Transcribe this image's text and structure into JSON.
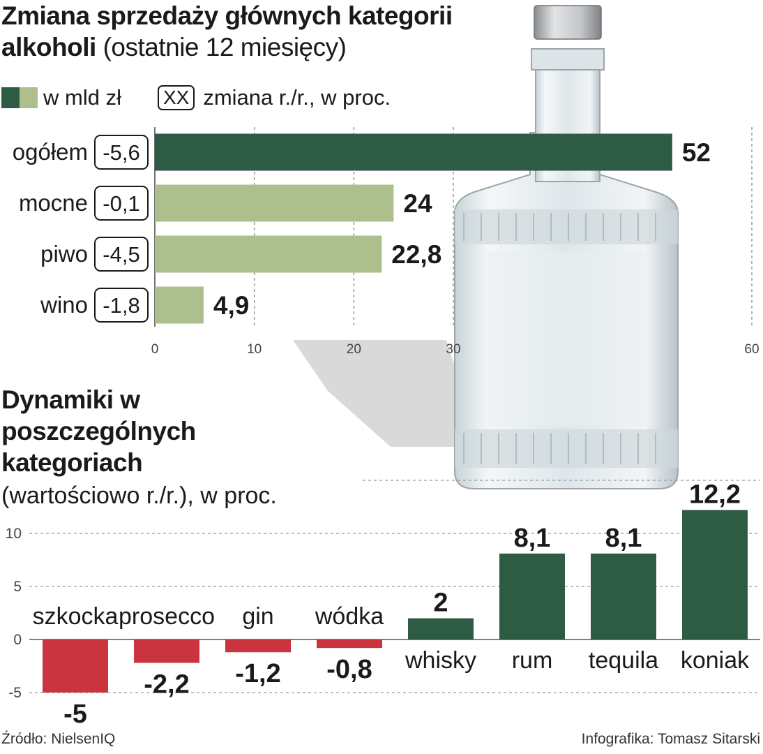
{
  "colors": {
    "dark_green": "#2e5b44",
    "light_green": "#aebf8e",
    "red": "#c9343f",
    "grid": "#999999",
    "text": "#1a1a1a"
  },
  "top": {
    "title_bold": "Zmiana sprzedaży głównych kategorii alkoholi",
    "title_light": "(ostatnie 12 miesięcy)",
    "legend_value_label": "w mld zł",
    "legend_box_label": "XX",
    "legend_change_label": "zmiana r./r., w proc."
  },
  "bottom": {
    "title": "Dynamiki w poszczególnych kategoriach",
    "subtitle": "(wartościowo r./r.), w proc."
  },
  "footer": {
    "source": "Źródło: NielsenIQ",
    "credit": "Infografika: Tomasz Sitarski"
  },
  "decoration": {
    "image": "glass-bottle-photo"
  },
  "chart_data": [
    {
      "type": "bar",
      "orientation": "horizontal",
      "categories": [
        "ogółem",
        "mocne",
        "piwo",
        "wino"
      ],
      "values": [
        52,
        24,
        22.8,
        4.9
      ],
      "value_labels": [
        "52",
        "24",
        "22,8",
        "4,9"
      ],
      "changes": [
        "-5,6",
        "-0,1",
        "-4,5",
        "-1,8"
      ],
      "highlight_index": 0,
      "xlim": [
        0,
        60
      ],
      "xticks": [
        0,
        10,
        20,
        30,
        60
      ],
      "xtick_labels": [
        "0",
        "10",
        "20",
        "30",
        "60"
      ],
      "grid": true
    },
    {
      "type": "bar",
      "orientation": "vertical",
      "categories": [
        "szkocka",
        "prosecco",
        "gin",
        "wódka",
        "whisky",
        "rum",
        "tequila",
        "koniak"
      ],
      "values": [
        -5,
        -2.2,
        -1.2,
        -0.8,
        2,
        8.1,
        8.1,
        12.2
      ],
      "value_labels": [
        "-5",
        "-2,2",
        "-1,2",
        "-0,8",
        "2",
        "8,1",
        "8,1",
        "12,2"
      ],
      "ylim": [
        -5,
        15
      ],
      "yticks": [
        -5,
        0,
        5,
        10
      ],
      "ytick_labels": [
        "-5",
        "0",
        "5",
        "10"
      ],
      "grid": true
    }
  ]
}
